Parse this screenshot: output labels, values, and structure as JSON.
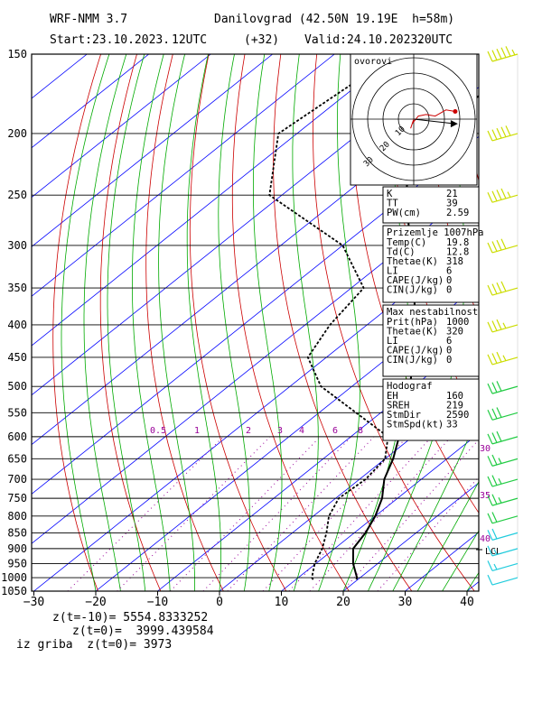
{
  "header": {
    "model": "WRF-NMM 3.7",
    "station": "Danilovgrad (42.50N 19.19E  h=58m)",
    "start": "Start:23.10.2023.",
    "start_hour": "12UTC",
    "lead": "(+32)",
    "valid": "Valid:24.10.2023.",
    "valid_hour": "20UTC"
  },
  "hodo_title": "ovorovi",
  "panels": {
    "indices": [
      {
        "label": "K",
        "value": "21"
      },
      {
        "label": "TT",
        "value": "39"
      },
      {
        "label": "PW(cm)",
        "value": "2.59"
      }
    ],
    "surface_title": "Prizemlje 1007hPa",
    "surface": [
      {
        "label": "Temp(C)",
        "value": "19.8"
      },
      {
        "label": "Td(C)",
        "value": "12.8"
      },
      {
        "label": "Thetae(K)",
        "value": "318"
      },
      {
        "label": "LI",
        "value": "6"
      },
      {
        "label": "CAPE(J/kg)",
        "value": "0"
      },
      {
        "label": "CIN(J/kg)",
        "value": "0"
      }
    ],
    "unstable_title": "Max nestabilnost",
    "unstable": [
      {
        "label": "Prit(hPa)",
        "value": "1000"
      },
      {
        "label": "Thetae(K)",
        "value": "320"
      },
      {
        "label": "LI",
        "value": "6"
      },
      {
        "label": "CAPE(J/kg)",
        "value": "0"
      },
      {
        "label": "CIN(J/kg)",
        "value": "0"
      }
    ],
    "hodograf_title": "Hodograf",
    "hodograf": [
      {
        "label": "EH",
        "value": "160"
      },
      {
        "label": "SREH",
        "value": "219"
      },
      {
        "label": "StmDir",
        "value": "2590"
      },
      {
        "label": "StmSpd(kt)",
        "value": "33"
      }
    ]
  },
  "footer": {
    "line1": "z(t=-10)= 5554.8333252",
    "line2": "z(t=0)=  3999.439584",
    "line3": "iz griba  z(t=0)= 3973"
  },
  "colors": {
    "isobar": "#000000",
    "isotherm": "#0000ff",
    "dry_adiabat": "#cc0000",
    "moist_adiabat": "#00aa00",
    "mixing_ratio": "#990099",
    "temperature": "#000000",
    "dewpoint": "#000000",
    "wind_barb_upper": "#ccdd00",
    "wind_barb_mid": "#22cc44",
    "wind_barb_low": "#22ccdd",
    "hodograph": "#cc0000"
  },
  "chart_data": {
    "type": "line",
    "xlabel": "",
    "ylabel": "",
    "xlim": [
      -30,
      42
    ],
    "ylim": [
      1050,
      150
    ],
    "x_ticks": [
      -30,
      -20,
      -10,
      0,
      10,
      20,
      30,
      40
    ],
    "y_ticks": [
      150,
      200,
      250,
      300,
      350,
      400,
      450,
      500,
      550,
      600,
      650,
      700,
      750,
      800,
      850,
      900,
      950,
      1000,
      1050
    ],
    "mixing_ratio_labels": [
      "0.5",
      "1",
      "2",
      "3",
      "4",
      "6",
      "8"
    ],
    "side_labels": [
      "30",
      "35",
      "40",
      "LCL"
    ],
    "series": [
      {
        "pressure": [
          1007,
          1000,
          950,
          900,
          850,
          800,
          750,
          700,
          650,
          600,
          550,
          500,
          450,
          400,
          350,
          300,
          250,
          200,
          150
        ],
        "values": [
          19.8,
          19.5,
          16.0,
          13.0,
          11.8,
          10.0,
          7.5,
          4.0,
          1.3,
          -2.2,
          -6.2,
          -10.6,
          -16.0,
          -22.3,
          -29.8,
          -39.0,
          -50.0,
          -61.0,
          -55.0
        ]
      },
      {
        "pressure": [
          1007,
          1000,
          950,
          900,
          850,
          800,
          750,
          700,
          650,
          600,
          550,
          500,
          450,
          400,
          350,
          300,
          250,
          200,
          150
        ],
        "values": [
          12.8,
          12.2,
          9.8,
          8.0,
          5.5,
          2.5,
          0.5,
          1.0,
          0.0,
          -4.0,
          -14.0,
          -25.0,
          -33.0,
          -36.0,
          -38.0,
          -50.0,
          -72.0,
          -83.0,
          -80.0
        ]
      }
    ]
  },
  "wind_barbs": [
    {
      "p": 150,
      "knots": 55
    },
    {
      "p": 200,
      "knots": 50
    },
    {
      "p": 250,
      "knots": 45
    },
    {
      "p": 300,
      "knots": 40
    },
    {
      "p": 350,
      "knots": 40
    },
    {
      "p": 400,
      "knots": 35
    },
    {
      "p": 450,
      "knots": 35
    },
    {
      "p": 500,
      "knots": 30
    },
    {
      "p": 550,
      "knots": 30
    },
    {
      "p": 600,
      "knots": 30
    },
    {
      "p": 650,
      "knots": 25
    },
    {
      "p": 700,
      "knots": 25
    },
    {
      "p": 750,
      "knots": 25
    },
    {
      "p": 800,
      "knots": 20
    },
    {
      "p": 850,
      "knots": 20
    },
    {
      "p": 900,
      "knots": 15
    },
    {
      "p": 950,
      "knots": 15
    },
    {
      "p": 1000,
      "knots": 10
    }
  ],
  "hodograph": {
    "rings_kt": [
      10,
      20,
      30,
      40
    ],
    "ring_labels": [
      "10",
      "20",
      "30"
    ],
    "trace": [
      [
        0,
        0
      ],
      [
        -2,
        -6
      ],
      [
        -1,
        -3
      ],
      [
        3,
        2
      ],
      [
        8,
        3
      ],
      [
        14,
        2
      ],
      [
        21,
        6
      ],
      [
        27,
        5
      ]
    ],
    "storm_motion": [
      27,
      -3
    ]
  }
}
